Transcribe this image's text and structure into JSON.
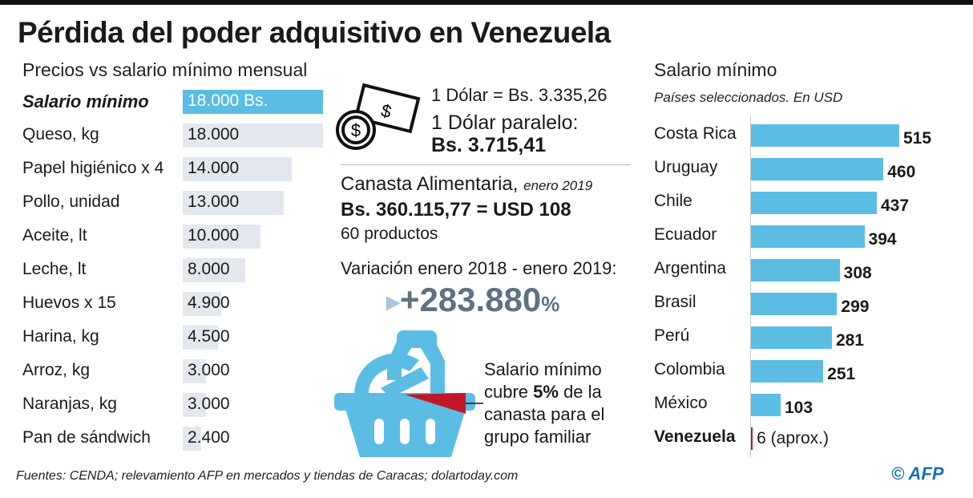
{
  "title": "Pérdida del poder adquisitivo en Venezuela",
  "colors": {
    "bar_blue": "#5bbde4",
    "bar_gray": "#e3e8ef",
    "red": "#c0182a",
    "percent_text": "#5d7282"
  },
  "chart_data": [
    {
      "type": "bar",
      "orientation": "horizontal",
      "title": "Precios vs salario mínimo mensual",
      "unit": "Bs.",
      "categories": [
        "Salario mínimo",
        "Queso, kg",
        "Papel higiénico x 4",
        "Pollo, unidad",
        "Aceite, lt",
        "Leche, lt",
        "Huevos x 15",
        "Harina, kg",
        "Arroz, kg",
        "Naranjas, kg",
        "Pan de sándwich"
      ],
      "values": [
        18000,
        18000,
        14000,
        13000,
        10000,
        8000,
        4900,
        4500,
        3000,
        3000,
        2400
      ],
      "labels": [
        "18.000 Bs.",
        "18.000",
        "14.000",
        "13.000",
        "10.000",
        "8.000",
        "4.900",
        "4.500",
        "3.000",
        "3.000",
        "2.400"
      ],
      "highlight": "Salario mínimo"
    },
    {
      "type": "bar",
      "orientation": "horizontal",
      "title": "Salario mínimo",
      "subtitle": "Países seleccionados. En USD",
      "categories": [
        "Costa Rica",
        "Uruguay",
        "Chile",
        "Ecuador",
        "Argentina",
        "Brasil",
        "Perú",
        "Colombia",
        "México",
        "Venezuela"
      ],
      "values": [
        515,
        460,
        437,
        394,
        308,
        299,
        281,
        251,
        103,
        6
      ],
      "labels": [
        "515",
        "460",
        "437",
        "394",
        "308",
        "299",
        "281",
        "251",
        "103",
        "6 (aprox.)"
      ],
      "highlight": "Venezuela"
    }
  ],
  "middle": {
    "dolar": "1 Dólar = Bs. 3.335,26",
    "paralelo": "1 Dólar paralelo:",
    "paralelo_value": "Bs. 3.715,41",
    "canasta": "Canasta Alimentaria,",
    "canasta_date": "enero 2019",
    "canasta_value": "Bs. 360.115,77 = USD 108",
    "productos": "60 productos",
    "variacion": "Variación enero 2018 - enero 2019:",
    "variacion_value": "+283.880",
    "percent_sign": "%",
    "cover_1": "Salario mínimo",
    "cover_2a": "cubre ",
    "cover_2b": "5%",
    "cover_2c": " de la",
    "cover_3": "canasta para el",
    "cover_4": "grupo familiar",
    "cover_fraction": 0.05
  },
  "source": "Fuentes: CENDA; relevamiento AFP en mercados y tiendas de Caracas; dolartoday.com",
  "credit": "© AFP"
}
